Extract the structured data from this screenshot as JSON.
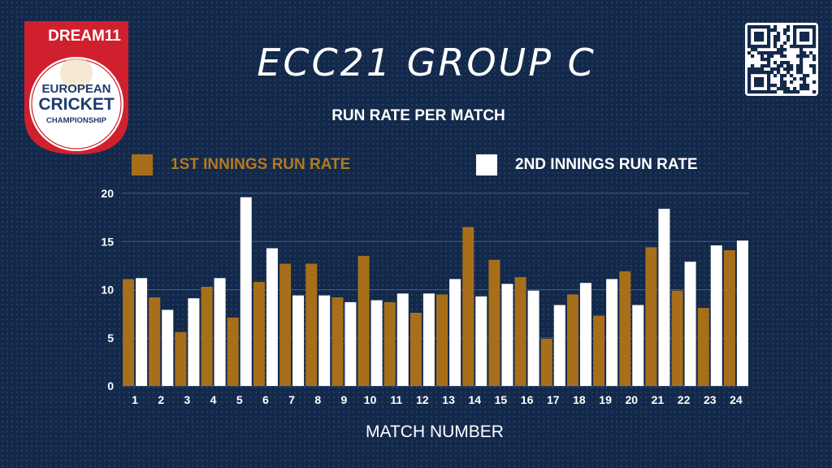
{
  "brand": {
    "sponsor": "DREAM11",
    "line1": "EUROPEAN",
    "line2": "CRICKET",
    "line3": "CHAMPIONSHIP"
  },
  "colors": {
    "background": "#13294b",
    "first_innings": "#a86f1a",
    "second_innings": "#ffffff",
    "logo_red": "#d0202e"
  },
  "qr_icon": "qr-code-icon",
  "chart_data": {
    "type": "bar",
    "title": "ECC21 GROUP C",
    "subtitle": "RUN RATE PER MATCH",
    "xlabel": "MATCH NUMBER",
    "ylabel": "",
    "ylim": [
      0,
      20
    ],
    "yticks": [
      0,
      5,
      10,
      15,
      20
    ],
    "grid": true,
    "legend_position": "top",
    "categories": [
      "1",
      "2",
      "3",
      "4",
      "5",
      "6",
      "7",
      "8",
      "9",
      "10",
      "11",
      "12",
      "13",
      "14",
      "15",
      "16",
      "17",
      "18",
      "19",
      "20",
      "21",
      "22",
      "23",
      "24"
    ],
    "series": [
      {
        "name": "1ST INNINGS RUN RATE",
        "values": [
          11.1,
          9.2,
          5.6,
          10.3,
          7.1,
          10.8,
          12.7,
          12.7,
          9.2,
          13.5,
          8.7,
          7.6,
          9.5,
          16.5,
          13.1,
          11.3,
          4.9,
          9.5,
          7.3,
          11.9,
          14.4,
          9.9,
          8.1,
          14.1
        ]
      },
      {
        "name": "2ND INNINGS RUN RATE",
        "values": [
          11.2,
          7.9,
          9.1,
          11.2,
          19.6,
          14.3,
          9.4,
          9.4,
          8.7,
          8.9,
          9.6,
          9.6,
          11.1,
          9.3,
          10.6,
          9.9,
          8.4,
          10.7,
          11.1,
          8.4,
          18.4,
          12.9,
          14.6,
          15.1
        ]
      }
    ]
  }
}
